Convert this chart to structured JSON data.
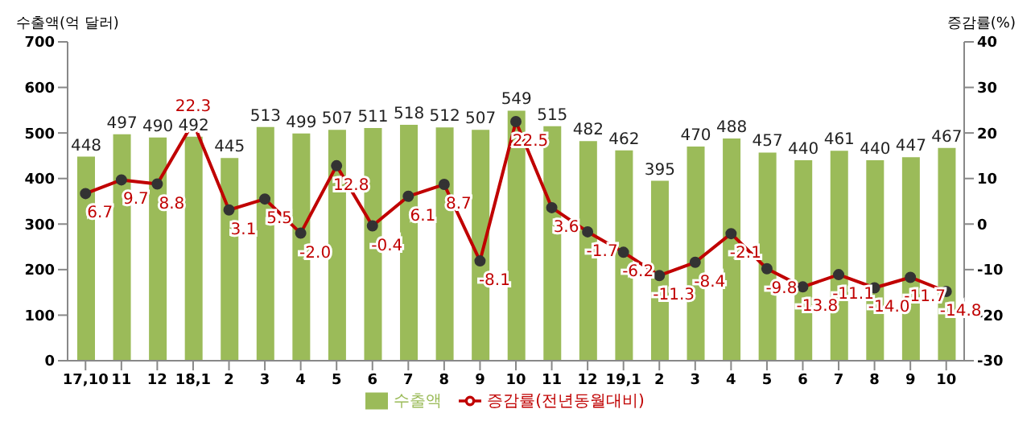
{
  "chart_data": {
    "type": "bar",
    "ylabel": "수출액(억 달러)",
    "y2label": "증감률(%)",
    "categories": [
      "17,10",
      "11",
      "12",
      "18,1",
      "2",
      "3",
      "4",
      "5",
      "6",
      "7",
      "8",
      "9",
      "10",
      "11",
      "12",
      "19,1",
      "2",
      "3",
      "4",
      "5",
      "6",
      "7",
      "8",
      "9",
      "10"
    ],
    "series": [
      {
        "name": "수출액",
        "color": "#9bbb59",
        "values": [
          448,
          497,
          490,
          492,
          445,
          513,
          499,
          507,
          511,
          518,
          512,
          507,
          549,
          515,
          482,
          462,
          395,
          470,
          488,
          457,
          440,
          461,
          440,
          447,
          467
        ],
        "value_labels": [
          "448",
          "497",
          "490",
          "492",
          "445",
          "513",
          "499",
          "507",
          "511",
          "518",
          "512",
          "507",
          "549",
          "515",
          "482",
          "462",
          "395",
          "470",
          "488",
          "457",
          "440",
          "461",
          "440",
          "447",
          "467"
        ]
      },
      {
        "name": "증감률(전년동월대비)",
        "type": "line",
        "axis": "y2",
        "color": "#c00000",
        "values": [
          6.7,
          9.7,
          8.8,
          22.3,
          3.1,
          5.5,
          -2.0,
          12.8,
          -0.4,
          6.1,
          8.7,
          -8.1,
          22.5,
          3.6,
          -1.7,
          -6.2,
          -11.3,
          -8.4,
          -2.1,
          -9.8,
          -13.8,
          -11.1,
          -14.0,
          -11.7,
          -14.8
        ],
        "value_labels": [
          "6.7",
          "9.7",
          "8.8",
          "22.3",
          "3.1",
          "5.5",
          "-2.0",
          "12.8",
          "-0.4",
          "6.1",
          "8.7",
          "-8.1",
          "22.5",
          "3.6",
          "-1.7",
          "-6.2",
          "-11.3",
          "-8.4",
          "-2.1",
          "-9.8",
          "-13.8",
          "-11.1",
          "-14.0",
          "-11.7",
          "-14.8"
        ]
      }
    ],
    "ylim": [
      0,
      700
    ],
    "yticks": [
      0,
      100,
      200,
      300,
      400,
      500,
      600,
      700
    ],
    "y2lim": [
      -30,
      40
    ],
    "y2ticks": [
      -30,
      -20,
      -10,
      0,
      10,
      20,
      30,
      40
    ],
    "legend": "bottom",
    "marker": "circle"
  }
}
